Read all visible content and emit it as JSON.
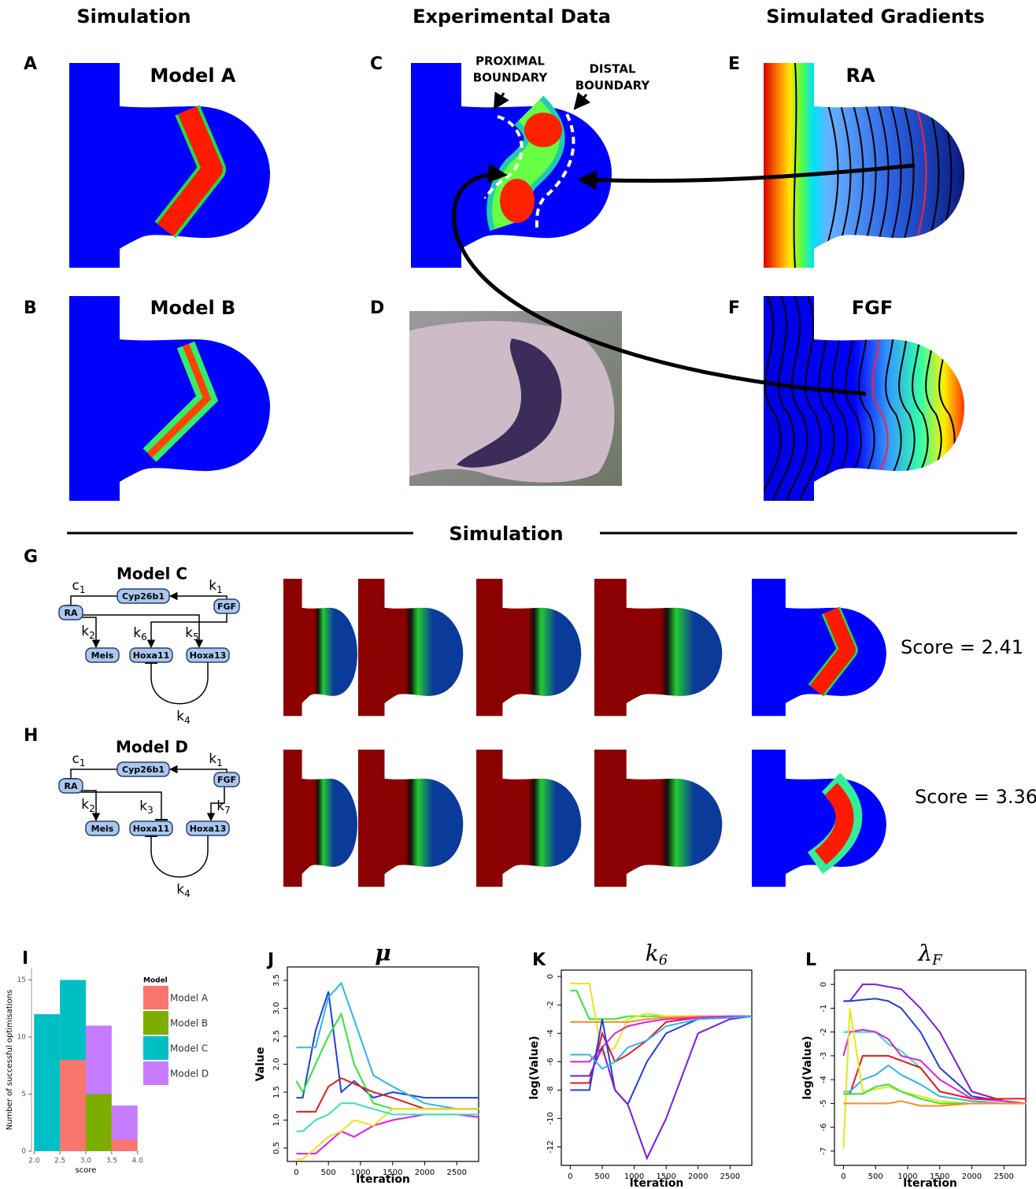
{
  "headers": [
    "Simulation",
    "Experimental Data",
    "Simulated Gradients"
  ],
  "panel_labels": [
    "A",
    "B",
    "C",
    "D",
    "E",
    "F",
    "G",
    "H",
    "I",
    "J",
    "K",
    "L"
  ],
  "panel_titles": [
    "Model A",
    "Model B",
    "RA",
    "FGF"
  ],
  "annotations": {
    "proximal": [
      "PROXIMAL",
      "BOUNDARY"
    ],
    "distal": [
      "DISTAL",
      "BOUNDARY"
    ]
  },
  "section_title": "Simulation",
  "networks": [
    {
      "title": "Model C",
      "nodes": [
        "Cyp26b1",
        "RA",
        "FGF",
        "Meis",
        "Hoxa11",
        "Hoxa13"
      ],
      "edges": [
        {
          "text": "c",
          "sub": "1"
        },
        {
          "text": "k",
          "sub": "1"
        },
        {
          "text": "k",
          "sub": "2"
        },
        {
          "text": "k",
          "sub": "6"
        },
        {
          "text": "k",
          "sub": "5"
        },
        {
          "text": "k",
          "sub": "4"
        }
      ],
      "score": "Score = 2.41"
    },
    {
      "title": "Model D",
      "nodes": [
        "Cyp26b1",
        "RA",
        "FGF",
        "Meis",
        "Hoxa11",
        "Hoxa13"
      ],
      "edges": [
        {
          "text": "c",
          "sub": "1"
        },
        {
          "text": "k",
          "sub": "1"
        },
        {
          "text": "k",
          "sub": "2"
        },
        {
          "text": "k",
          "sub": "3"
        },
        {
          "text": "k",
          "sub": "7"
        },
        {
          "text": "k",
          "sub": "4"
        }
      ],
      "score": "Score = 3.36"
    }
  ],
  "chart_data": [
    {
      "type": "histogram",
      "xlabel": "score",
      "ylabel": "Number of successful optimisations",
      "legend_title": "Model",
      "bins": [
        2,
        2.5,
        3,
        3.5,
        4
      ],
      "series": [
        {
          "name": "Model A",
          "color": "#f8766d",
          "values": [
            0,
            8,
            0,
            1
          ]
        },
        {
          "name": "Model B",
          "color": "#7cae00",
          "values": [
            0,
            0,
            5,
            0
          ]
        },
        {
          "name": "Model C",
          "color": "#00bfc4",
          "values": [
            12,
            7,
            0,
            0
          ]
        },
        {
          "name": "Model D",
          "color": "#c77cff",
          "values": [
            0,
            0,
            6,
            3
          ]
        }
      ],
      "xlim": [
        1.95,
        4.05
      ],
      "xticks": [
        {
          "value": 2,
          "label": "2.0"
        },
        2.5,
        {
          "value": 3,
          "label": "3.0"
        },
        3.5,
        {
          "value": 4,
          "label": "4.0"
        }
      ],
      "ylim": [
        0,
        16
      ],
      "yticks": [
        0,
        5,
        10,
        15
      ]
    },
    {
      "type": "line",
      "title": "μ",
      "xlabel": "Iteration",
      "ylabel": "Value",
      "x": [
        0,
        100,
        300,
        500,
        700,
        900,
        1200,
        1500,
        2000,
        2500,
        2850
      ],
      "series": [
        {
          "color": "#1f3fe0",
          "values": [
            1.4,
            1.4,
            2.6,
            3.3,
            1.5,
            1.7,
            1.4,
            1.5,
            1.4,
            1.4,
            1.4
          ]
        },
        {
          "color": "#2bb5f0",
          "values": [
            2.3,
            2.3,
            2.3,
            3.2,
            3.45,
            2.8,
            1.8,
            1.6,
            1.3,
            1.2,
            1.2
          ]
        },
        {
          "color": "#33e633",
          "values": [
            1.7,
            1.5,
            2.0,
            2.5,
            2.9,
            2.0,
            1.3,
            1.2,
            1.2,
            1.2,
            1.2
          ]
        },
        {
          "color": "#e61a1a",
          "values": [
            1.15,
            1.15,
            1.15,
            1.6,
            1.75,
            1.65,
            1.5,
            1.4,
            1.2,
            1.2,
            1.2
          ]
        },
        {
          "color": "#e61ae6",
          "values": [
            0.4,
            0.4,
            0.4,
            0.6,
            0.8,
            0.7,
            0.9,
            1.0,
            1.1,
            1.1,
            1.05
          ]
        },
        {
          "color": "#e6e61a",
          "values": [
            0.3,
            0.3,
            0.5,
            0.7,
            0.8,
            1.0,
            0.9,
            1.2,
            1.2,
            1.2,
            1.2
          ]
        },
        {
          "color": "#33e6b3",
          "values": [
            0.8,
            0.8,
            1.0,
            1.1,
            1.3,
            1.3,
            1.2,
            1.1,
            1.1,
            1.1,
            1.1
          ]
        }
      ],
      "xlim": [
        -140,
        2840
      ],
      "xticks": [
        0,
        500,
        1000,
        1500,
        2000,
        2500
      ],
      "ylim": [
        0.26,
        3.74
      ],
      "yticks": [
        0.5,
        {
          "value": 1,
          "label": "1.0"
        },
        1.5,
        {
          "value": 2,
          "label": "2.0"
        },
        2.5,
        {
          "value": 3,
          "label": "3.0"
        },
        3.5
      ]
    },
    {
      "type": "line",
      "title": {
        "text": "k",
        "sub": "6"
      },
      "xlabel": "Iteration",
      "ylabel": "log(Value)",
      "x": [
        0,
        100,
        300,
        500,
        700,
        900,
        1200,
        1500,
        2000,
        2500,
        2850
      ],
      "series": [
        {
          "color": "#33e633",
          "values": [
            -1,
            -1,
            -3,
            -3,
            -3,
            -2.8,
            -2.8,
            -2.8,
            -2.8,
            -2.8,
            -2.8
          ]
        },
        {
          "color": "#e6e61a",
          "values": [
            -0.5,
            -0.5,
            -0.5,
            -5.5,
            -5,
            -3,
            -2.6,
            -2.8,
            -2.8,
            -2.8,
            -2.8
          ]
        },
        {
          "color": "#ff8c1a",
          "values": [
            -3.2,
            -3.2,
            -3.2,
            -3.2,
            -3.2,
            -3.2,
            -3,
            -2.9,
            -2.8,
            -2.8,
            -2.8
          ]
        },
        {
          "color": "#e61a1a",
          "values": [
            -7.5,
            -7.5,
            -7.5,
            -4,
            -6,
            -5.5,
            -4.5,
            -3.2,
            -2.9,
            -2.8,
            -2.8
          ]
        },
        {
          "color": "#e61ae6",
          "values": [
            -6,
            -6,
            -6,
            -5,
            -4,
            -3.5,
            -3.2,
            -3,
            -2.9,
            -2.8,
            -2.8
          ]
        },
        {
          "color": "#1f3fe0",
          "values": [
            -8,
            -8,
            -8,
            -3,
            -8,
            -9,
            -6,
            -4,
            -3,
            -2.9,
            -2.8
          ]
        },
        {
          "color": "#7a1ae6",
          "values": [
            -7,
            -7,
            -7,
            -5,
            -8,
            -9,
            -12.8,
            -10,
            -4,
            -3,
            -2.8
          ]
        },
        {
          "color": "#2bb5f0",
          "values": [
            -5.5,
            -5.5,
            -5.5,
            -6.5,
            -6,
            -5,
            -4.5,
            -3.5,
            -3,
            -2.9,
            -2.8
          ]
        }
      ],
      "xlim": [
        -140,
        2840
      ],
      "xticks": [
        0,
        500,
        1000,
        1500,
        2000,
        2500
      ],
      "ylim": [
        -13.3,
        0.45
      ],
      "yticks": [
        0,
        -2,
        -4,
        -6,
        -8,
        -10,
        -12
      ]
    },
    {
      "type": "line",
      "title": {
        "text": "λ",
        "sub": "F"
      },
      "xlabel": "Iteration",
      "ylabel": "log(Value)",
      "x": [
        0,
        100,
        300,
        500,
        700,
        900,
        1200,
        1500,
        2000,
        2500,
        2850
      ],
      "series": [
        {
          "color": "#7a1ae6",
          "values": [
            -0.7,
            -0.7,
            0,
            0,
            -0.1,
            -0.2,
            -1,
            -2,
            -4.5,
            -4.9,
            -5
          ]
        },
        {
          "color": "#1f3fe0",
          "values": [
            -0.7,
            -0.7,
            -0.65,
            -0.6,
            -0.7,
            -1,
            -2,
            -3.5,
            -4.7,
            -4.9,
            -5
          ]
        },
        {
          "color": "#33e6b3",
          "values": [
            -2,
            -2,
            -2,
            -2,
            -2.5,
            -2.8,
            -3.5,
            -4.5,
            -4.8,
            -4.9,
            -5
          ]
        },
        {
          "color": "#e61ae6",
          "values": [
            -3,
            -2,
            -1.9,
            -2,
            -2.3,
            -3,
            -3.2,
            -4,
            -4.8,
            -4.9,
            -5
          ]
        },
        {
          "color": "#e61a1a",
          "values": [
            -4.6,
            -4.6,
            -3,
            -3,
            -3,
            -3.2,
            -3.5,
            -4.5,
            -4.8,
            -4.8,
            -4.8
          ]
        },
        {
          "color": "#2bb5f0",
          "values": [
            -4.5,
            -4.5,
            -4,
            -3.8,
            -3.4,
            -3.8,
            -4.2,
            -4.7,
            -4.9,
            -5,
            -5
          ]
        },
        {
          "color": "#e6e61a",
          "values": [
            -6.9,
            -1,
            -4.5,
            -4.4,
            -4.3,
            -4.5,
            -4.7,
            -4.9,
            -5,
            -5,
            -5
          ]
        },
        {
          "color": "#33e633",
          "values": [
            -4.6,
            -4.6,
            -4.6,
            -4.3,
            -4.2,
            -4.5,
            -4.8,
            -5,
            -5,
            -5,
            -5
          ]
        },
        {
          "color": "#ff8c1a",
          "values": [
            -5,
            -5,
            -5,
            -5,
            -5,
            -4.9,
            -5.1,
            -5.1,
            -5,
            -5,
            -5
          ]
        }
      ],
      "xlim": [
        -140,
        2840
      ],
      "xticks": [
        0,
        500,
        1000,
        1500,
        2000,
        2500
      ],
      "ylim": [
        -7.6,
        0.6
      ],
      "yticks": [
        0,
        -1,
        -2,
        -3,
        -4,
        -5,
        -6,
        -7
      ]
    }
  ]
}
